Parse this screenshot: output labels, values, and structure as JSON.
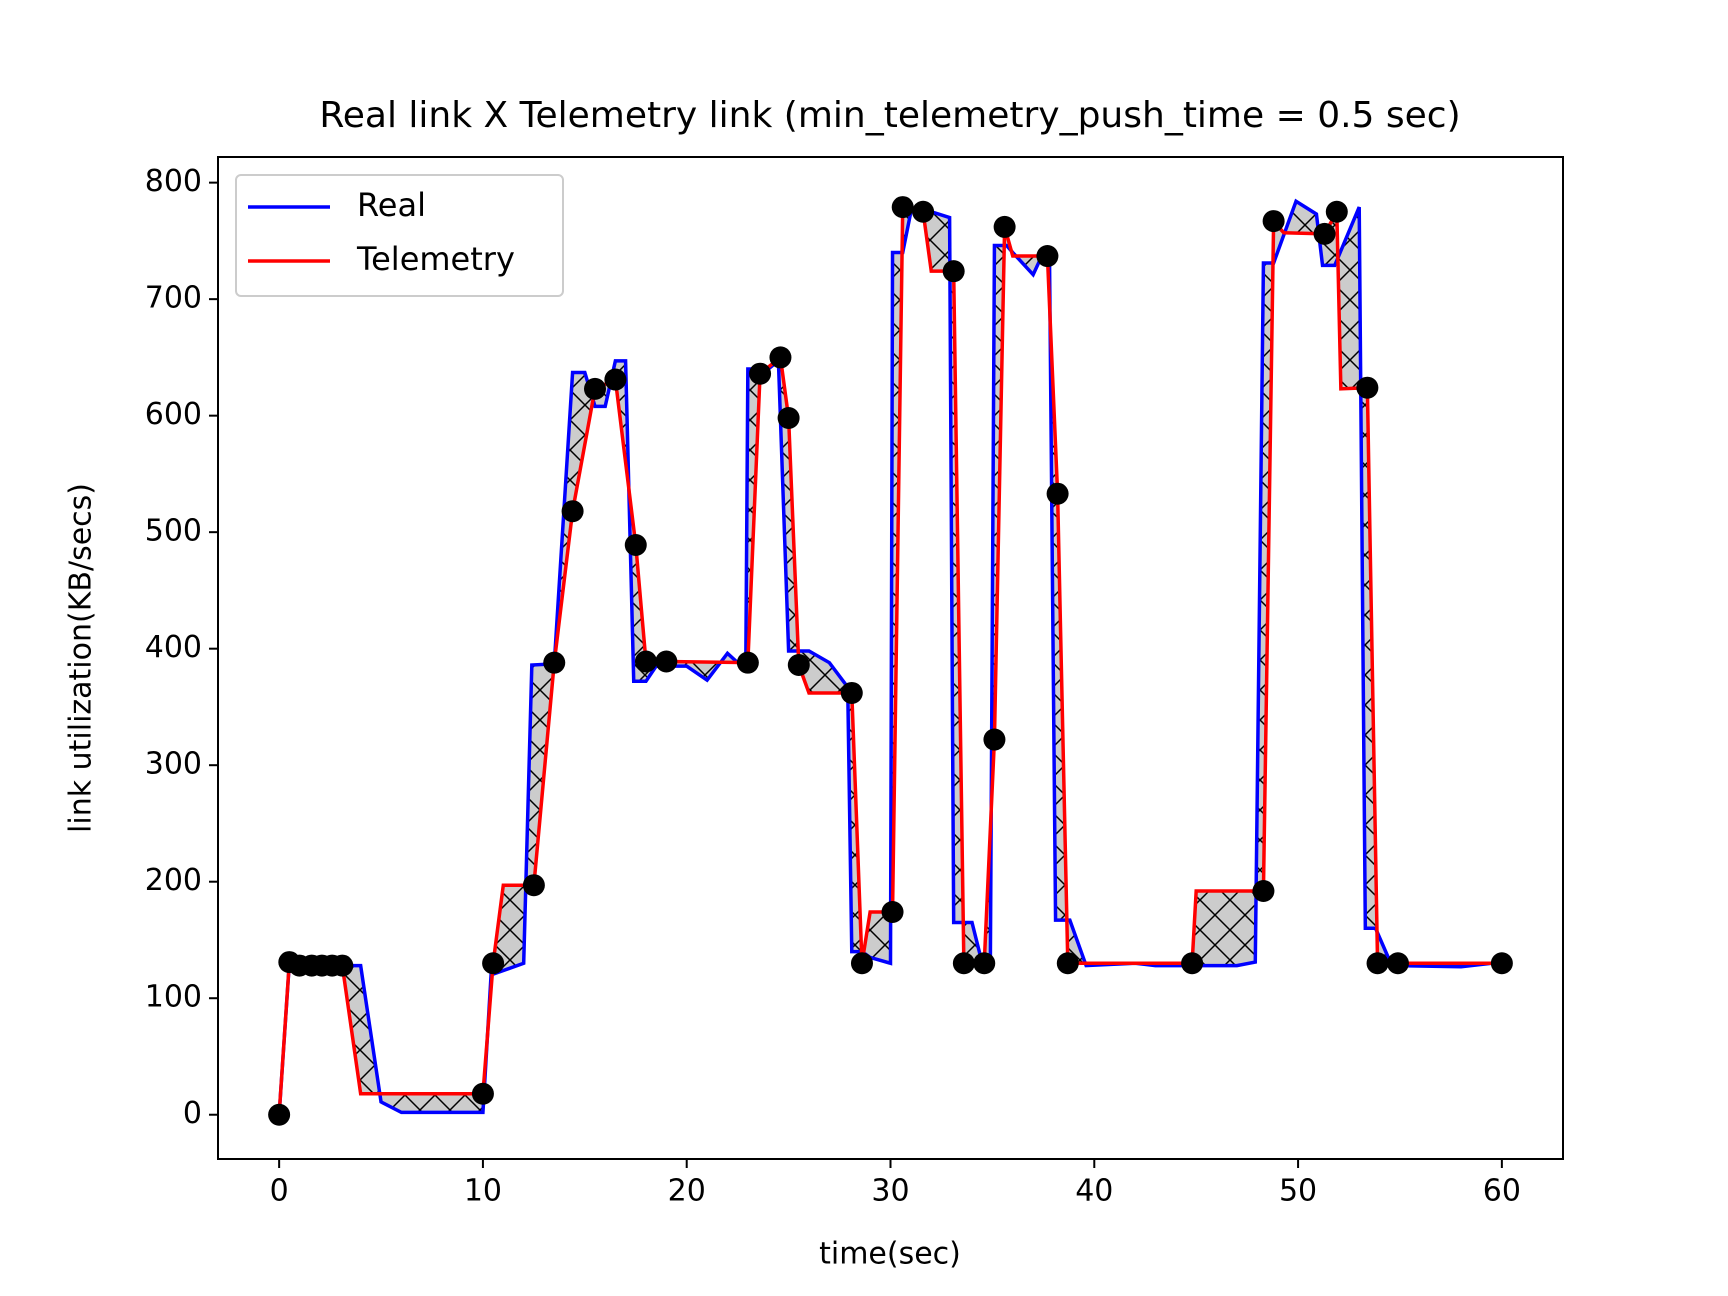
{
  "chart_data": {
    "type": "line",
    "title": "Real link X Telemetry link (min_telemetry_push_time = 0.5 sec)",
    "x_label": "time(sec)",
    "y_label": "link utilization(KB/secs)",
    "xlim": [
      -3,
      63
    ],
    "ylim": [
      -38,
      822
    ],
    "xticks": [
      0,
      10,
      20,
      30,
      40,
      50,
      60
    ],
    "yticks": [
      0,
      100,
      200,
      300,
      400,
      500,
      600,
      700,
      800
    ],
    "legend": "upper left",
    "fill_between": true,
    "series": [
      {
        "name": "Real",
        "color": "#0000ff",
        "x": [
          0,
          0.5,
          3.1,
          4.0,
          5.0,
          6.0,
          10.0,
          10.4,
          12.0,
          12.4,
          13.5,
          14.4,
          15.0,
          15.5,
          16.0,
          16.5,
          17.0,
          17.4,
          18.0,
          18.5,
          20.0,
          21.0,
          22.0,
          22.5,
          22.9,
          23.0,
          24.0,
          24.5,
          25.0,
          26.0,
          27.0,
          27.9,
          28.1,
          28.6,
          29.0,
          30.0,
          30.1,
          30.6,
          31.0,
          32.0,
          32.9,
          33.1,
          34.0,
          34.5,
          34.9,
          35.1,
          35.7,
          36.0,
          37.0,
          37.5,
          37.8,
          38.1,
          38.8,
          39.6,
          42.0,
          43.0,
          47.0,
          47.9,
          48.3,
          48.8,
          49.9,
          50.9,
          51.2,
          51.8,
          53.0,
          53.3,
          53.8,
          54.6,
          58.0,
          59.5,
          60.0
        ],
        "values": [
          0,
          130,
          128,
          128,
          11,
          2,
          2,
          120,
          130,
          386,
          387,
          637,
          637,
          608,
          608,
          647,
          647,
          372,
          372,
          385,
          385,
          373,
          396,
          388,
          388,
          640,
          640,
          647,
          398,
          398,
          388,
          367,
          140,
          140,
          135,
          130,
          740,
          740,
          775,
          775,
          770,
          165,
          165,
          130,
          130,
          746,
          746,
          740,
          721,
          740,
          740,
          167,
          167,
          128,
          130,
          128,
          128,
          131,
          731,
          731,
          784,
          773,
          729,
          729,
          779,
          160,
          160,
          128,
          127,
          130,
          128
        ]
      },
      {
        "name": "Telemetry",
        "color": "#ff0000",
        "x": [
          0,
          0.5,
          3.1,
          4.0,
          10.0,
          10.5,
          11.0,
          12.5,
          13.5,
          14.4,
          15.5,
          16.5,
          17.5,
          18.0,
          19.0,
          23.0,
          23.6,
          24.6,
          25.0,
          25.5,
          26.0,
          28.1,
          28.6,
          29.0,
          30.1,
          30.6,
          31.6,
          32.0,
          33.1,
          33.6,
          34.6,
          35.1,
          35.6,
          36.0,
          37.7,
          38.2,
          38.7,
          44.8,
          45.0,
          48.3,
          48.8,
          49.3,
          51.3,
          51.9,
          52.1,
          53.4,
          53.9,
          54.9,
          60
        ],
        "values": [
          0,
          131,
          128,
          18,
          18,
          130,
          197,
          197,
          388,
          518,
          623,
          631,
          489,
          389,
          389,
          388,
          636,
          650,
          598,
          386,
          362,
          362,
          130,
          174,
          174,
          779,
          775,
          724,
          724,
          130,
          130,
          322,
          762,
          737,
          737,
          533,
          130,
          130,
          192,
          192,
          767,
          757,
          756,
          775,
          623,
          624,
          130,
          130,
          130
        ],
        "markers": {
          "color": "#000000",
          "x": [
            0,
            0.5,
            1.0,
            1.6,
            2.1,
            2.6,
            3.1,
            10,
            10.5,
            12.5,
            13.5,
            14.4,
            15.5,
            16.5,
            17.5,
            18.0,
            19.0,
            23.0,
            23.6,
            24.6,
            25.0,
            25.5,
            28.1,
            28.6,
            30.1,
            30.6,
            31.6,
            33.1,
            33.6,
            34.6,
            35.1,
            35.6,
            37.7,
            38.2,
            38.7,
            44.8,
            48.3,
            48.8,
            51.3,
            51.9,
            53.4,
            53.9,
            54.9,
            60
          ],
          "values": [
            0,
            131,
            128,
            128,
            128,
            128,
            128,
            18,
            130,
            197,
            388,
            518,
            623,
            631,
            489,
            389,
            389,
            388,
            636,
            650,
            598,
            386,
            362,
            130,
            174,
            779,
            775,
            724,
            130,
            130,
            322,
            762,
            737,
            533,
            130,
            130,
            192,
            767,
            756,
            775,
            624,
            130,
            130,
            130
          ]
        }
      }
    ]
  }
}
